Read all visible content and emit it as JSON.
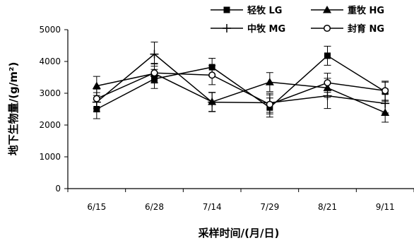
{
  "chart_data": {
    "type": "line",
    "title": "",
    "xlabel": "采样时间/(月/日)",
    "ylabel": "地下生物量/(g/m²)",
    "categories": [
      "6/15",
      "6/28",
      "7/14",
      "7/29",
      "8/21",
      "9/11"
    ],
    "ylim": [
      0,
      5000
    ],
    "yticks": [
      0,
      1000,
      2000,
      3000,
      4000,
      5000
    ],
    "grid": false,
    "legend_position": "top-right",
    "series": [
      {
        "name": "轻牧 LG",
        "marker": "square",
        "values": [
          2500,
          3450,
          3820,
          2550,
          4180,
          3050
        ],
        "errors": [
          300,
          300,
          280,
          300,
          300,
          300
        ]
      },
      {
        "name": "重牧 HG",
        "marker": "triangle",
        "values": [
          3230,
          3620,
          2730,
          3350,
          3170,
          2390
        ],
        "errors": [
          300,
          300,
          300,
          300,
          300,
          300
        ]
      },
      {
        "name": "中牧 MG",
        "marker": "plus",
        "values": [
          2720,
          4230,
          2720,
          2700,
          2920,
          2680
        ],
        "errors": [
          300,
          380,
          300,
          300,
          400,
          300
        ]
      },
      {
        "name": "封育 NG",
        "marker": "circle",
        "values": [
          2830,
          3640,
          3570,
          2650,
          3330,
          3080
        ],
        "errors": [
          300,
          300,
          300,
          300,
          300,
          300
        ]
      }
    ]
  }
}
